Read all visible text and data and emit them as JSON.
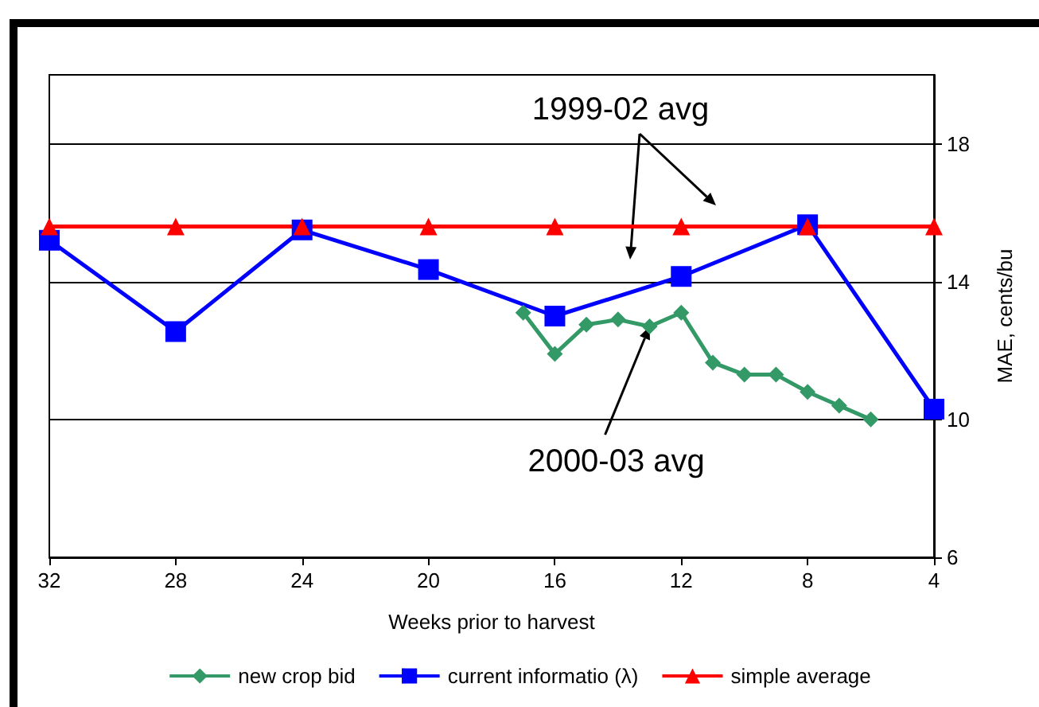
{
  "chart_data": {
    "type": "line",
    "xlabel": "Weeks prior to harvest",
    "ylabel": "MAE, cents/bu",
    "xlim": [
      32,
      4
    ],
    "xticks": [
      32,
      28,
      24,
      20,
      16,
      12,
      8,
      4
    ],
    "ylim": [
      6,
      20
    ],
    "yticks": [
      6,
      10,
      14,
      18
    ],
    "grid": "y",
    "legend": "bottom",
    "series": [
      {
        "name": "new crop bid",
        "color": "#339966",
        "marker": "diamond",
        "x": [
          17,
          16,
          15,
          14,
          13,
          12,
          11,
          10,
          9,
          8,
          7,
          6
        ],
        "values": [
          13.1,
          11.9,
          12.75,
          12.9,
          12.7,
          13.1,
          11.65,
          11.3,
          11.3,
          10.8,
          10.4,
          10.0
        ]
      },
      {
        "name": "current informatio (λ)",
        "color": "#0000ff",
        "marker": "square",
        "x": [
          32,
          28,
          24,
          20,
          16,
          12,
          8,
          4
        ],
        "values": [
          15.2,
          12.55,
          15.5,
          14.35,
          13.0,
          14.15,
          15.65,
          10.3
        ]
      },
      {
        "name": "simple average",
        "color": "#ff0000",
        "marker": "triangle",
        "x": [
          32,
          28,
          24,
          20,
          16,
          12,
          8,
          4
        ],
        "values": [
          15.6,
          15.6,
          15.6,
          15.6,
          15.6,
          15.6,
          15.6,
          15.6
        ]
      }
    ],
    "annotations": [
      "1999-02 avg",
      {
        "text": "2000-03 avg",
        "x": 13,
        "y": 12.7
      }
    ]
  }
}
